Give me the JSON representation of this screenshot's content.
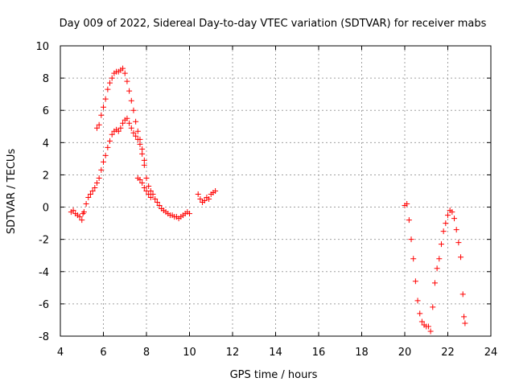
{
  "chart_data": {
    "type": "scatter",
    "title": "Day 009 of 2022, Sidereal Day-to-day VTEC variation (SDTVAR) for receiver mabs",
    "xlabel": "GPS time / hours",
    "ylabel": "SDTVAR / TECUs",
    "xlim": [
      4,
      24
    ],
    "ylim": [
      -8,
      10
    ],
    "xticks": [
      4,
      6,
      8,
      10,
      12,
      14,
      16,
      18,
      20,
      22,
      24
    ],
    "yticks": [
      -8,
      -6,
      -4,
      -2,
      0,
      2,
      4,
      6,
      8,
      10
    ],
    "grid": true,
    "marker": "+",
    "color": "#ff0000",
    "series": [
      {
        "name": "main-arc",
        "points": [
          [
            4.5,
            -0.3
          ],
          [
            4.6,
            -0.2
          ],
          [
            4.7,
            -0.4
          ],
          [
            4.8,
            -0.5
          ],
          [
            4.9,
            -0.6
          ],
          [
            5.0,
            -0.8
          ],
          [
            5.05,
            -0.4
          ],
          [
            5.1,
            -0.3
          ],
          [
            5.2,
            0.2
          ],
          [
            5.3,
            0.6
          ],
          [
            5.4,
            0.8
          ],
          [
            5.5,
            1.0
          ],
          [
            5.6,
            1.2
          ],
          [
            5.7,
            1.5
          ],
          [
            5.8,
            1.8
          ],
          [
            5.9,
            2.3
          ],
          [
            6.0,
            2.8
          ],
          [
            6.1,
            3.2
          ],
          [
            6.2,
            3.7
          ],
          [
            6.3,
            4.1
          ],
          [
            6.4,
            4.5
          ],
          [
            6.5,
            4.7
          ],
          [
            6.6,
            4.8
          ],
          [
            6.7,
            4.7
          ],
          [
            6.8,
            4.9
          ],
          [
            6.9,
            5.2
          ],
          [
            7.0,
            5.4
          ],
          [
            7.1,
            5.5
          ],
          [
            7.2,
            5.2
          ],
          [
            7.3,
            4.9
          ],
          [
            7.4,
            4.6
          ],
          [
            7.5,
            4.4
          ],
          [
            7.6,
            4.2
          ],
          [
            7.7,
            3.9
          ],
          [
            7.8,
            3.3
          ],
          [
            7.9,
            2.6
          ],
          [
            8.0,
            1.8
          ],
          [
            8.1,
            1.3
          ],
          [
            8.2,
            1.0
          ],
          [
            8.3,
            0.8
          ],
          [
            8.4,
            0.5
          ],
          [
            8.5,
            0.3
          ],
          [
            8.6,
            0.1
          ],
          [
            8.7,
            -0.1
          ],
          [
            8.8,
            -0.2
          ],
          [
            8.9,
            -0.3
          ],
          [
            9.0,
            -0.4
          ],
          [
            9.1,
            -0.5
          ],
          [
            9.2,
            -0.5
          ],
          [
            9.3,
            -0.6
          ],
          [
            9.4,
            -0.6
          ],
          [
            9.5,
            -0.7
          ],
          [
            9.6,
            -0.6
          ],
          [
            9.7,
            -0.5
          ],
          [
            9.8,
            -0.4
          ],
          [
            9.9,
            -0.3
          ],
          [
            10.0,
            -0.4
          ]
        ]
      },
      {
        "name": "upper-arc",
        "points": [
          [
            5.7,
            4.9
          ],
          [
            5.8,
            5.1
          ],
          [
            5.9,
            5.7
          ],
          [
            6.0,
            6.2
          ],
          [
            6.1,
            6.7
          ],
          [
            6.2,
            7.3
          ],
          [
            6.3,
            7.7
          ],
          [
            6.4,
            8.0
          ],
          [
            6.5,
            8.3
          ],
          [
            6.6,
            8.4
          ],
          [
            6.7,
            8.4
          ],
          [
            6.8,
            8.5
          ],
          [
            6.9,
            8.6
          ],
          [
            7.0,
            8.3
          ],
          [
            7.1,
            7.8
          ],
          [
            7.2,
            7.2
          ],
          [
            7.3,
            6.6
          ],
          [
            7.4,
            6.0
          ],
          [
            7.5,
            5.3
          ],
          [
            7.6,
            4.7
          ],
          [
            7.7,
            4.2
          ],
          [
            7.8,
            3.6
          ],
          [
            7.9,
            2.9
          ]
        ]
      },
      {
        "name": "tail",
        "points": [
          [
            7.6,
            1.8
          ],
          [
            7.7,
            1.7
          ],
          [
            7.8,
            1.5
          ],
          [
            7.9,
            1.2
          ],
          [
            8.0,
            1.0
          ],
          [
            8.1,
            0.8
          ],
          [
            8.2,
            0.6
          ]
        ]
      },
      {
        "name": "segment-10-11",
        "points": [
          [
            10.4,
            0.8
          ],
          [
            10.5,
            0.5
          ],
          [
            10.6,
            0.3
          ],
          [
            10.7,
            0.4
          ],
          [
            10.8,
            0.6
          ],
          [
            10.9,
            0.5
          ],
          [
            11.0,
            0.8
          ],
          [
            11.1,
            0.9
          ],
          [
            11.2,
            1.0
          ]
        ]
      },
      {
        "name": "segment-20-22",
        "points": [
          [
            20.0,
            0.1
          ],
          [
            20.1,
            0.2
          ],
          [
            20.2,
            -0.8
          ],
          [
            20.3,
            -2.0
          ],
          [
            20.4,
            -3.2
          ],
          [
            20.5,
            -4.6
          ],
          [
            20.6,
            -5.8
          ],
          [
            20.7,
            -6.6
          ],
          [
            20.8,
            -7.1
          ],
          [
            20.9,
            -7.3
          ],
          [
            21.0,
            -7.4
          ],
          [
            21.1,
            -7.4
          ],
          [
            21.2,
            -7.7
          ],
          [
            21.3,
            -6.2
          ],
          [
            21.4,
            -4.7
          ],
          [
            21.5,
            -3.8
          ],
          [
            21.6,
            -3.2
          ],
          [
            21.7,
            -2.3
          ],
          [
            21.8,
            -1.5
          ],
          [
            21.9,
            -1.0
          ],
          [
            22.0,
            -0.5
          ],
          [
            22.1,
            -0.2
          ],
          [
            22.2,
            -0.3
          ],
          [
            22.3,
            -0.7
          ],
          [
            22.4,
            -1.4
          ],
          [
            22.5,
            -2.2
          ],
          [
            22.6,
            -3.1
          ],
          [
            22.7,
            -5.4
          ],
          [
            22.75,
            -6.8
          ],
          [
            22.8,
            -7.2
          ]
        ]
      }
    ]
  }
}
